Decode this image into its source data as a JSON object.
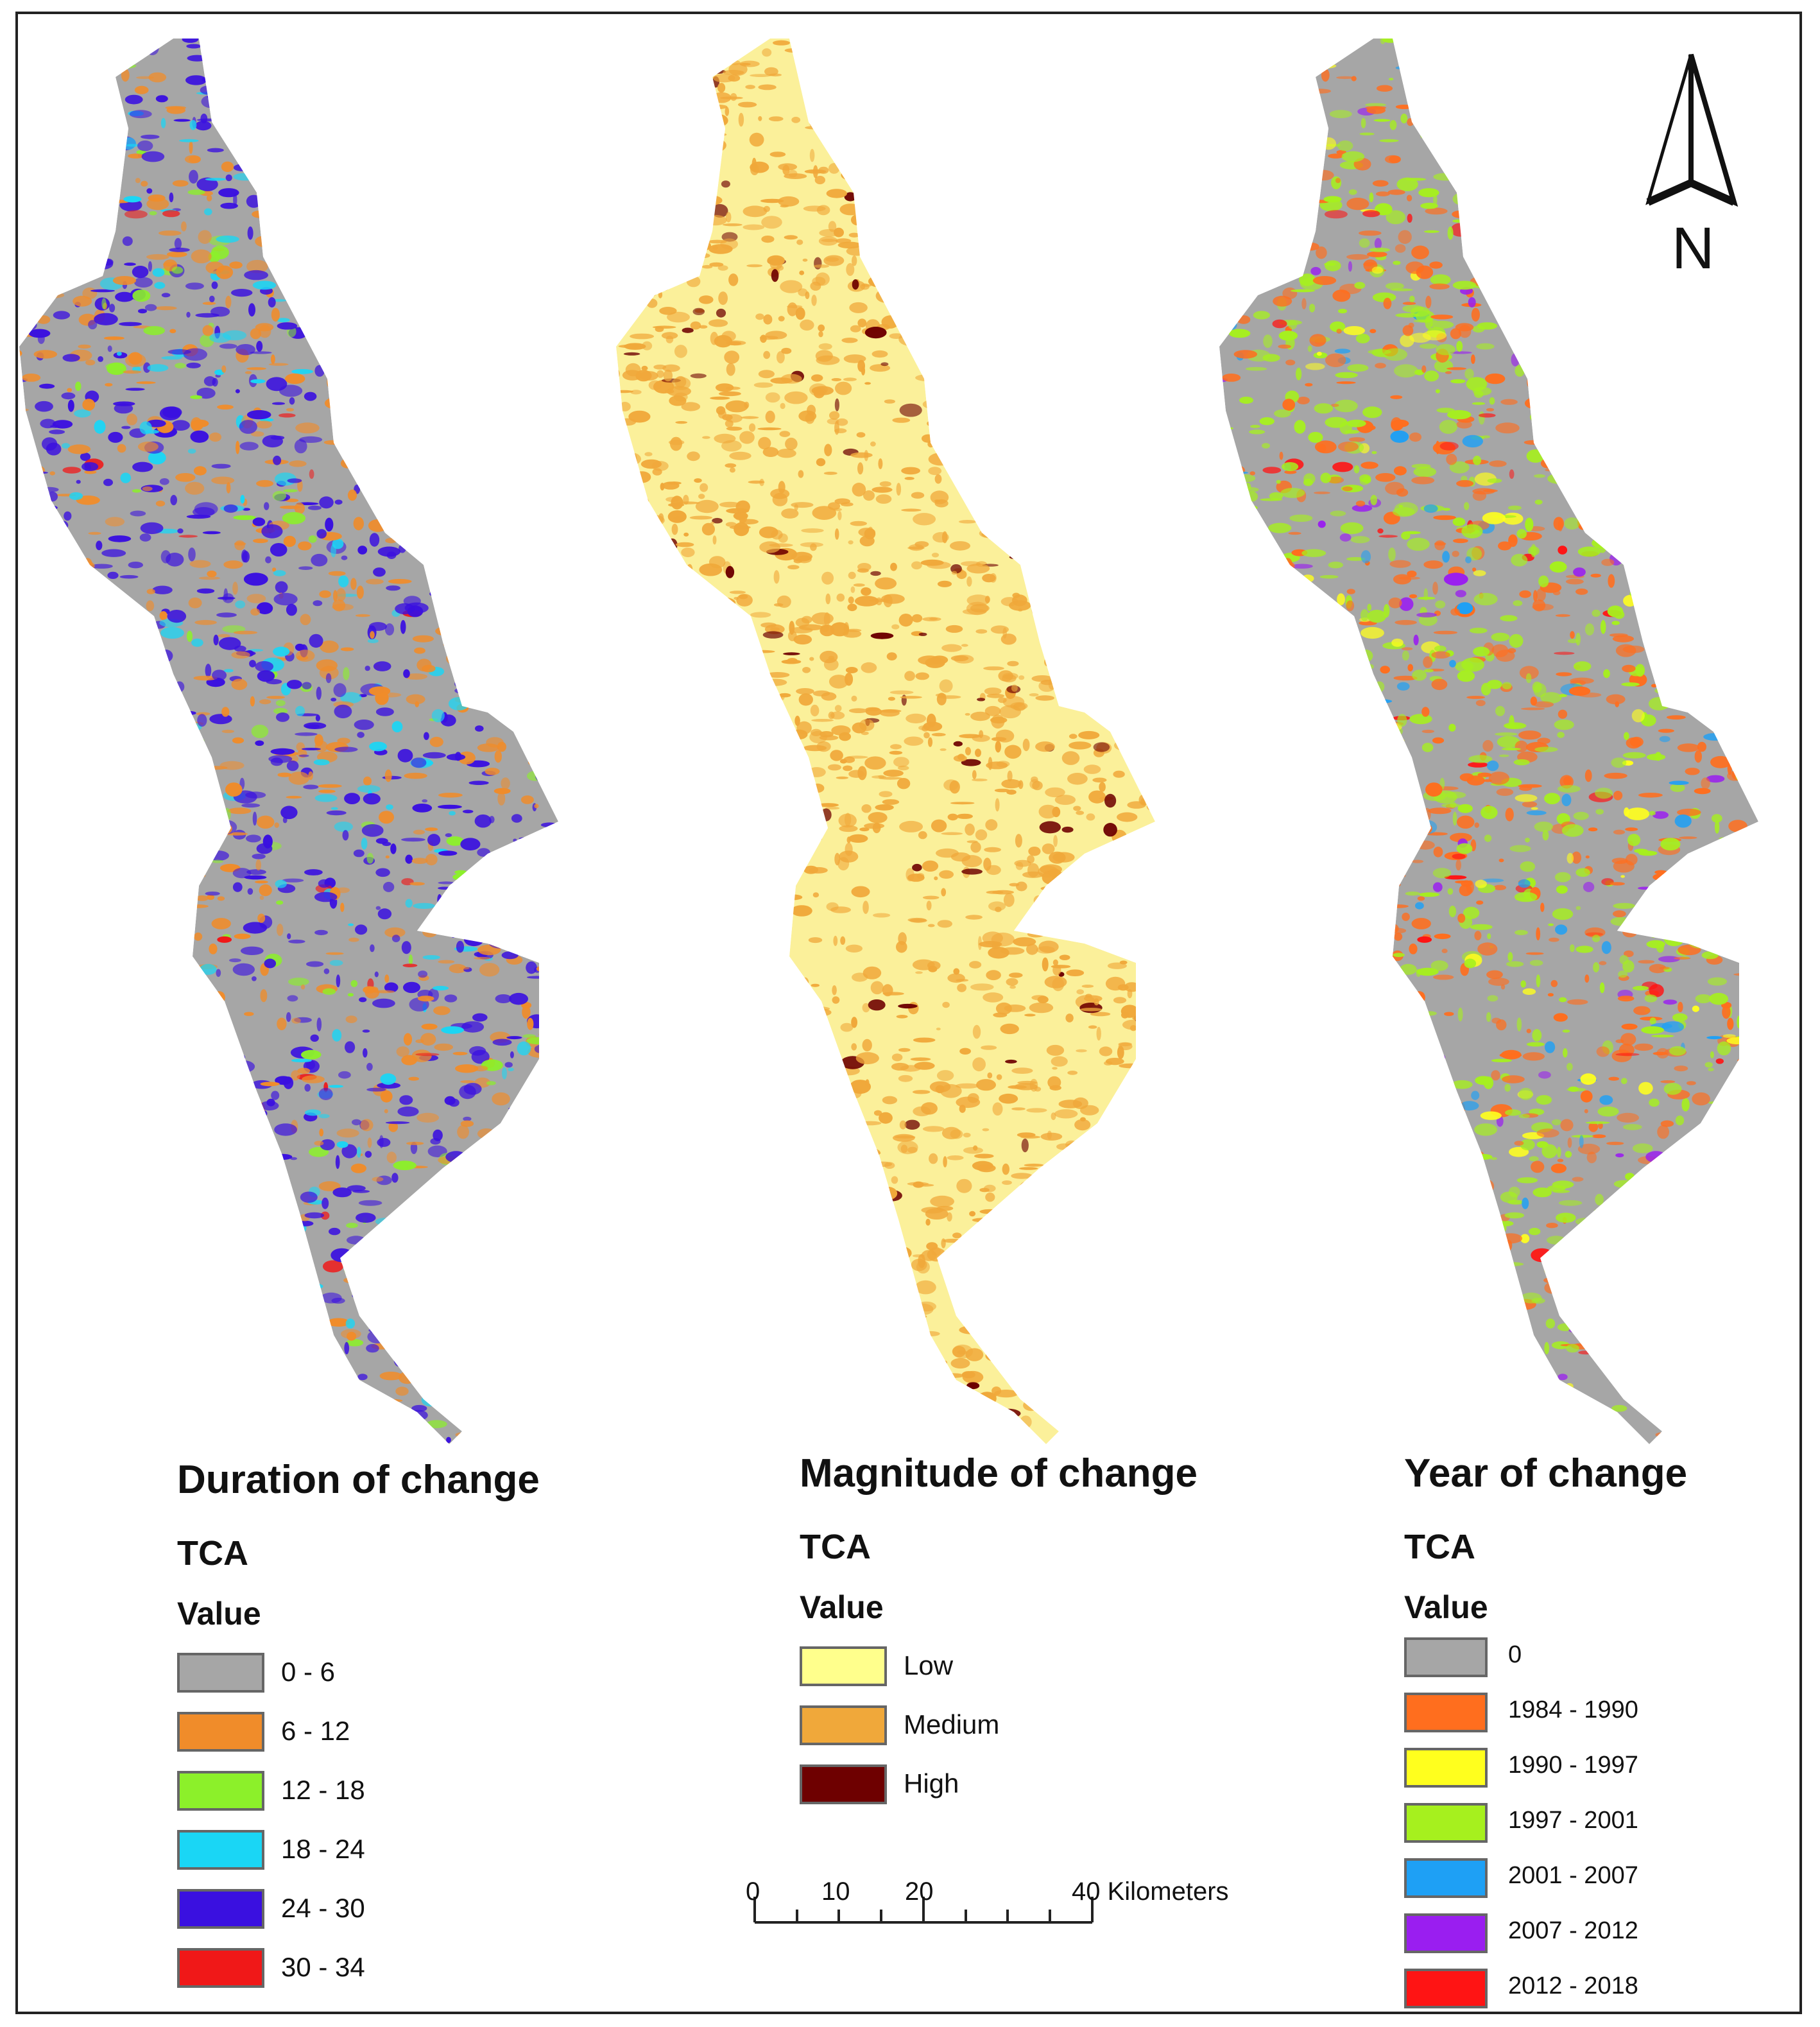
{
  "panels": [
    {
      "title": "Duration of change",
      "subtitle": "TCA",
      "value_label": "Value",
      "base_color": "#a6a6a6",
      "legend": [
        {
          "label": "0 - 6",
          "color": "#a6a6a6"
        },
        {
          "label": "6 - 12",
          "color": "#f08c2a"
        },
        {
          "label": "12 - 18",
          "color": "#8cf02a"
        },
        {
          "label": "18 - 24",
          "color": "#1ad6f5"
        },
        {
          "label": "24 - 30",
          "color": "#3a10e0"
        },
        {
          "label": "30 - 34",
          "color": "#f01818"
        }
      ]
    },
    {
      "title": "Magnitude of change",
      "subtitle": "TCA",
      "value_label": "Value",
      "base_color": "#fbf09a",
      "legend": [
        {
          "label": "Low",
          "color": "#ffff8c"
        },
        {
          "label": "Medium",
          "color": "#f0a83a"
        },
        {
          "label": "High",
          "color": "#6e0000"
        }
      ]
    },
    {
      "title": "Year of change",
      "subtitle": "TCA",
      "value_label": "Value",
      "base_color": "#a6a6a6",
      "legend": [
        {
          "label": "0",
          "color": "#a6a6a6"
        },
        {
          "label": "1984 - 1990",
          "color": "#ff6e1e"
        },
        {
          "label": "1990 - 1997",
          "color": "#ffff1e"
        },
        {
          "label": "1997 - 2001",
          "color": "#a6f01e"
        },
        {
          "label": "2001 - 2007",
          "color": "#1ea0f5"
        },
        {
          "label": "2007 - 2012",
          "color": "#9a1ef0"
        },
        {
          "label": "2012 - 2018",
          "color": "#ff1414"
        }
      ]
    }
  ],
  "scale_bar": {
    "labels": [
      "0",
      "10",
      "20",
      "40 Kilometers"
    ]
  },
  "north_arrow": {
    "label": "N",
    "icon": "north-arrow-icon"
  }
}
